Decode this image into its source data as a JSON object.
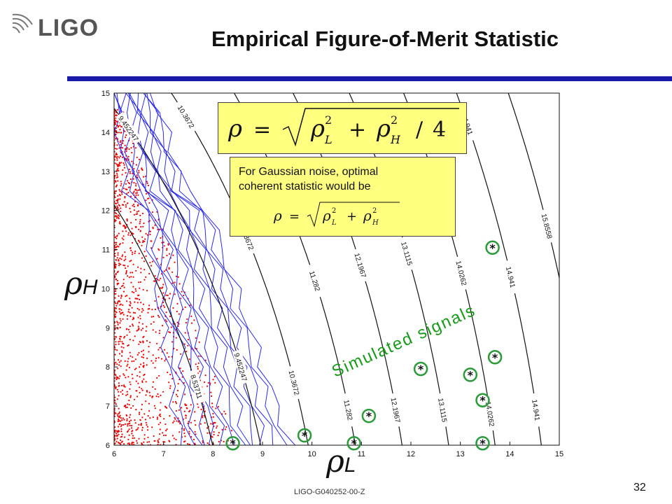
{
  "header": {
    "logo_text": "LIGO",
    "title": "Empirical Figure-of-Merit Statistic"
  },
  "formula_box": {
    "main_formula": "ρ = √(ρ_L² + ρ_H²/4)"
  },
  "note_box": {
    "line1": "For Gaussian noise, optimal",
    "line2": "coherent statistic would be",
    "formula": "ρ = √(ρ_L² + ρ_H²)"
  },
  "footer": {
    "doc_id": "LIGO-G040252-00-Z",
    "page_number": "32"
  },
  "colors": {
    "title_rule": "#1a1aa8",
    "noise_points": "#ee0000",
    "noise_contours": "#2a2aee",
    "iso_contours": "#111111",
    "signal_circle": "#2a9a3a",
    "box_fill": "#ffff80"
  },
  "chart_data": {
    "type": "scatter",
    "xlabel": "ρL",
    "ylabel": "ρH",
    "xlim": [
      6,
      15
    ],
    "ylim": [
      6,
      15
    ],
    "x_ticks": [
      6,
      7,
      8,
      9,
      10,
      11,
      12,
      13,
      14,
      15
    ],
    "y_ticks": [
      6,
      7,
      8,
      9,
      10,
      11,
      12,
      13,
      14,
      15
    ],
    "grid": false,
    "annotation": "Simulated signals",
    "iso_contours": [
      {
        "label": "8.53711",
        "rho": 8.53711
      },
      {
        "label": "9.452247",
        "rho": 9.452247
      },
      {
        "label": "10.3672",
        "rho": 10.3672
      },
      {
        "label": "11.282",
        "rho": 11.282
      },
      {
        "label": "12.1967",
        "rho": 12.1967
      },
      {
        "label": "13.1115",
        "rho": 13.1115
      },
      {
        "label": "14.0262",
        "rho": 14.0262
      },
      {
        "label": "14.941",
        "rho": 14.941
      },
      {
        "label": "15.8558",
        "rho": 15.8558
      }
    ],
    "series": [
      {
        "name": "Simulated signals",
        "x": [
          8.4,
          9.85,
          10.85,
          11.15,
          12.2,
          13.2,
          13.45,
          13.7,
          13.65,
          13.45
        ],
        "y": [
          6.05,
          6.25,
          6.05,
          6.75,
          7.95,
          7.8,
          7.15,
          8.25,
          11.05,
          6.05
        ]
      }
    ]
  }
}
